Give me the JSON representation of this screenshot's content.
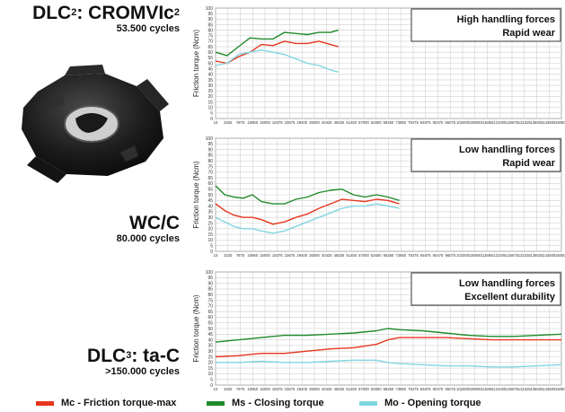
{
  "coatings": [
    {
      "name": "DLC",
      "sup": "2",
      "suffix": ": CROMVIc",
      "suffix_sup": "2",
      "cycles": "53.500 cycles"
    },
    {
      "name": "WC/C",
      "sup": "",
      "suffix": "",
      "suffix_sup": "",
      "cycles": "80.000 cycles"
    },
    {
      "name": "DLC",
      "sup": "3",
      "suffix": ": ta-C",
      "suffix_sup": "",
      "cycles": ">150.000 cycles"
    }
  ],
  "legend": [
    {
      "label": "Mc - Friction torque-max",
      "color": "#e8351e"
    },
    {
      "label": "Ms - Closing torque",
      "color": "#1f8a2a"
    },
    {
      "label": "Mo - Opening torque",
      "color": "#7fd6df"
    }
  ],
  "chart_data": [
    {
      "type": "line",
      "ylabel": "Friction torque (Ncm)",
      "ylim": [
        0,
        100
      ],
      "yticks": [
        0,
        5,
        10,
        15,
        20,
        25,
        30,
        35,
        40,
        45,
        50,
        55,
        60,
        65,
        70,
        75,
        80,
        85,
        90,
        95,
        100
      ],
      "x_ticks": [
        "10",
        "3325",
        "7875",
        "10950",
        "15000",
        "18375",
        "23675",
        "29400",
        "35000",
        "40425",
        "46025",
        "51450",
        "57000",
        "62600",
        "68250",
        "73850",
        "79275",
        "84875",
        "90475",
        "96075",
        "102000",
        "108000",
        "115850",
        "121000",
        "126675",
        "132325",
        "138025",
        "143500",
        "150500"
      ],
      "xlim": [
        10,
        150500
      ],
      "annotation": [
        "High handling forces",
        "Rapid wear"
      ],
      "series": [
        {
          "name": "Mc - Friction torque-max",
          "color": "#e8351e",
          "x": [
            10,
            5000,
            10000,
            15000,
            20000,
            25000,
            30000,
            35000,
            40000,
            45000,
            50000,
            53500
          ],
          "y": [
            52,
            50,
            56,
            60,
            67,
            66,
            70,
            68,
            68,
            70,
            67,
            65
          ]
        },
        {
          "name": "Ms - Closing torque",
          "color": "#1f8a2a",
          "x": [
            10,
            5000,
            10000,
            15000,
            20000,
            25000,
            30000,
            35000,
            40000,
            45000,
            50000,
            53500
          ],
          "y": [
            60,
            57,
            65,
            73,
            72,
            72,
            78,
            77,
            76,
            78,
            78,
            80
          ]
        },
        {
          "name": "Mo - Opening torque",
          "color": "#7fd6df",
          "x": [
            10,
            5000,
            10000,
            15000,
            20000,
            25000,
            30000,
            35000,
            40000,
            45000,
            50000,
            53500
          ],
          "y": [
            48,
            50,
            58,
            60,
            62,
            60,
            58,
            54,
            50,
            48,
            44,
            42
          ]
        }
      ]
    },
    {
      "type": "line",
      "ylabel": "Friction torque (Ncm)",
      "ylim": [
        0,
        100
      ],
      "yticks": [
        0,
        5,
        10,
        15,
        20,
        25,
        30,
        35,
        40,
        45,
        50,
        55,
        60,
        65,
        70,
        75,
        80,
        85,
        90,
        95,
        100
      ],
      "x_ticks": [
        "10",
        "3325",
        "7875",
        "10950",
        "15000",
        "18375",
        "23675",
        "29400",
        "35000",
        "40425",
        "46025",
        "51450",
        "57000",
        "62600",
        "68250",
        "73850",
        "79275",
        "84875",
        "90475",
        "96075",
        "102000",
        "108000",
        "115850",
        "121000",
        "126675",
        "132325",
        "138025",
        "143500",
        "150500"
      ],
      "xlim": [
        10,
        150500
      ],
      "annotation": [
        "Low handling forces",
        "Rapid wear"
      ],
      "series": [
        {
          "name": "Mc - Friction torque-max",
          "color": "#e8351e",
          "x": [
            10,
            4000,
            8000,
            12000,
            16000,
            20000,
            25000,
            30000,
            35000,
            40000,
            45000,
            50000,
            55000,
            60000,
            65000,
            70000,
            75000,
            80000
          ],
          "y": [
            42,
            36,
            32,
            30,
            30,
            28,
            24,
            26,
            30,
            33,
            38,
            42,
            46,
            45,
            44,
            46,
            45,
            42
          ]
        },
        {
          "name": "Ms - Closing torque",
          "color": "#1f8a2a",
          "x": [
            10,
            4000,
            8000,
            12000,
            16000,
            20000,
            25000,
            30000,
            35000,
            40000,
            45000,
            50000,
            55000,
            60000,
            65000,
            70000,
            75000,
            80000
          ],
          "y": [
            58,
            50,
            48,
            47,
            50,
            44,
            42,
            42,
            46,
            48,
            52,
            54,
            55,
            50,
            48,
            50,
            48,
            45
          ]
        },
        {
          "name": "Mo - Opening torque",
          "color": "#7fd6df",
          "x": [
            10,
            4000,
            8000,
            12000,
            16000,
            20000,
            25000,
            30000,
            35000,
            40000,
            45000,
            50000,
            55000,
            60000,
            65000,
            70000,
            75000,
            80000
          ],
          "y": [
            30,
            26,
            22,
            20,
            20,
            18,
            16,
            18,
            22,
            26,
            30,
            34,
            38,
            40,
            40,
            42,
            40,
            38
          ]
        }
      ]
    },
    {
      "type": "line",
      "ylabel": "Friction torque (Ncm)",
      "ylim": [
        0,
        100
      ],
      "yticks": [
        0,
        5,
        10,
        15,
        20,
        25,
        30,
        35,
        40,
        45,
        50,
        55,
        60,
        65,
        70,
        75,
        80,
        85,
        90,
        95,
        100
      ],
      "x_ticks": [
        "10",
        "3325",
        "7875",
        "10950",
        "15000",
        "18375",
        "23675",
        "29400",
        "35000",
        "40425",
        "46025",
        "51450",
        "57000",
        "62600",
        "68250",
        "73850",
        "79275",
        "84875",
        "90475",
        "96075",
        "102000",
        "108000",
        "115850",
        "121000",
        "126675",
        "132325",
        "138025",
        "143500",
        "150500"
      ],
      "xlim": [
        10,
        150500
      ],
      "annotation": [
        "Low handling forces",
        "Excellent durability"
      ],
      "series": [
        {
          "name": "Mc - Friction torque-max",
          "color": "#e8351e",
          "x": [
            10,
            10000,
            20000,
            30000,
            40000,
            50000,
            60000,
            70000,
            75000,
            80000,
            90000,
            100000,
            110000,
            120000,
            130000,
            140000,
            150500
          ],
          "y": [
            25,
            26,
            28,
            28,
            30,
            32,
            33,
            36,
            40,
            42,
            42,
            42,
            41,
            40,
            40,
            40,
            40
          ]
        },
        {
          "name": "Ms - Closing torque",
          "color": "#1f8a2a",
          "x": [
            10,
            10000,
            20000,
            30000,
            40000,
            50000,
            60000,
            70000,
            75000,
            80000,
            90000,
            100000,
            110000,
            120000,
            130000,
            140000,
            150500
          ],
          "y": [
            38,
            40,
            42,
            44,
            44,
            45,
            46,
            48,
            50,
            49,
            48,
            46,
            44,
            43,
            43,
            44,
            45
          ]
        },
        {
          "name": "Mo - Opening torque",
          "color": "#7fd6df",
          "x": [
            10,
            10000,
            20000,
            30000,
            40000,
            50000,
            60000,
            70000,
            75000,
            80000,
            90000,
            100000,
            110000,
            120000,
            130000,
            140000,
            150500
          ],
          "y": [
            20,
            20,
            21,
            20,
            20,
            21,
            22,
            22,
            20,
            19,
            18,
            17,
            17,
            16,
            16,
            17,
            18
          ]
        }
      ]
    }
  ]
}
